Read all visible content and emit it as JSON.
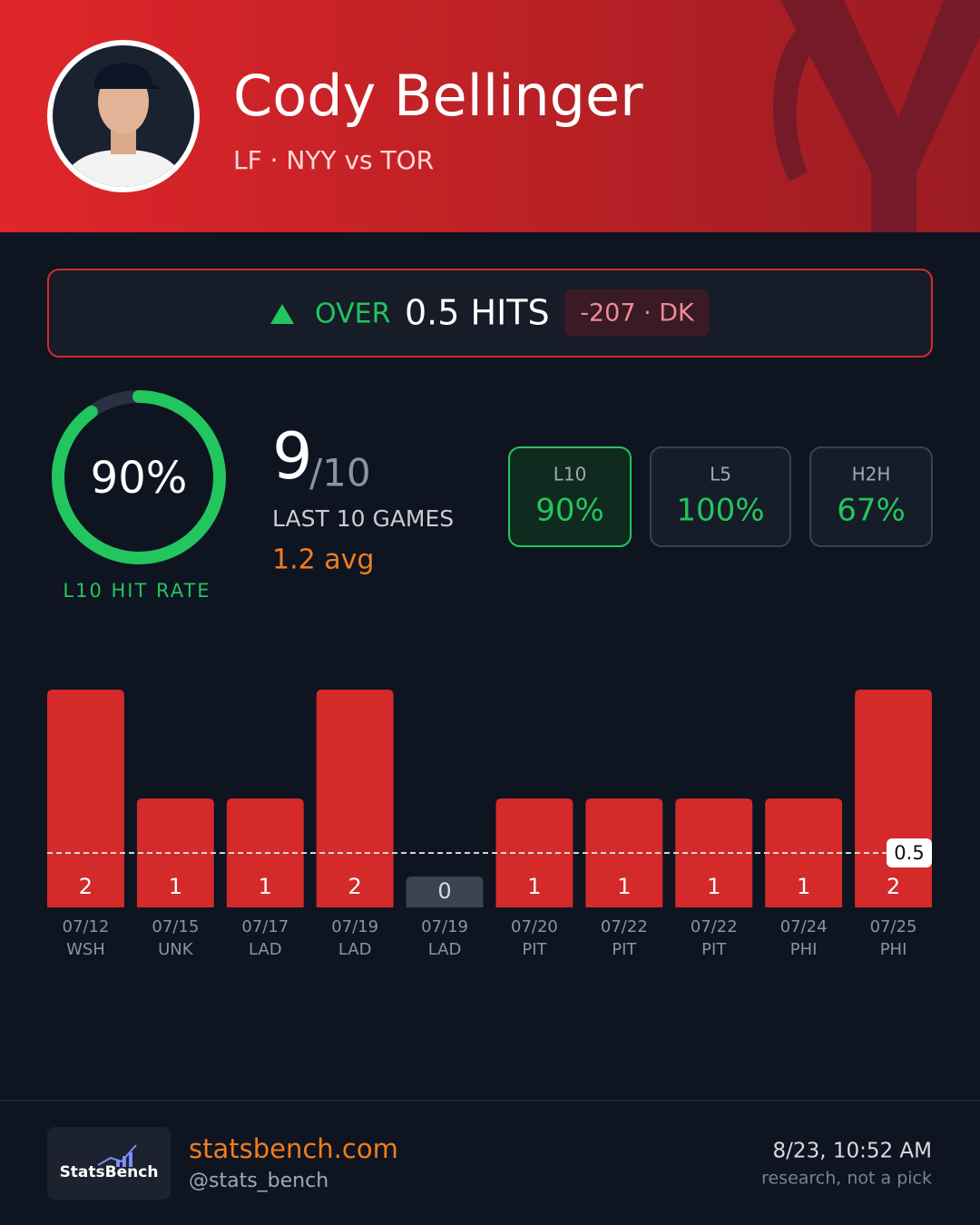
{
  "header": {
    "player": "Cody Bellinger",
    "subtitle": "LF · NYY vs TOR"
  },
  "prop": {
    "direction": "OVER",
    "line": "0.5 HITS",
    "odds": "-207 · DK"
  },
  "hit_rate": {
    "value": 90,
    "value_label": "90%",
    "caption": "L10 HIT RATE"
  },
  "record": {
    "made": 9,
    "total": "/10",
    "caption": "LAST 10 GAMES",
    "avg": "1.2 avg"
  },
  "splits": [
    {
      "label": "L10",
      "value": "90%"
    },
    {
      "label": "L5",
      "value": "100%"
    },
    {
      "label": "H2H",
      "value": "67%"
    }
  ],
  "chart_data": {
    "type": "bar",
    "categories": [
      "07/12",
      "07/15",
      "07/17",
      "07/19",
      "07/19",
      "07/20",
      "07/22",
      "07/22",
      "07/24",
      "07/25"
    ],
    "opponents": [
      "WSH",
      "UNK",
      "LAD",
      "LAD",
      "LAD",
      "PIT",
      "PIT",
      "PIT",
      "PHI",
      "PHI"
    ],
    "values": [
      2,
      1,
      1,
      2,
      0,
      1,
      1,
      1,
      1,
      2
    ],
    "color": "#d42a2a",
    "zero_color": "#3a4350",
    "threshold": 0.5
  },
  "footer": {
    "logo": "StatsBench",
    "site": "statsbench.com",
    "handle": "@stats_bench",
    "timestamp": "8/23, 10:52 AM",
    "disclaimer": "research, not a pick"
  }
}
